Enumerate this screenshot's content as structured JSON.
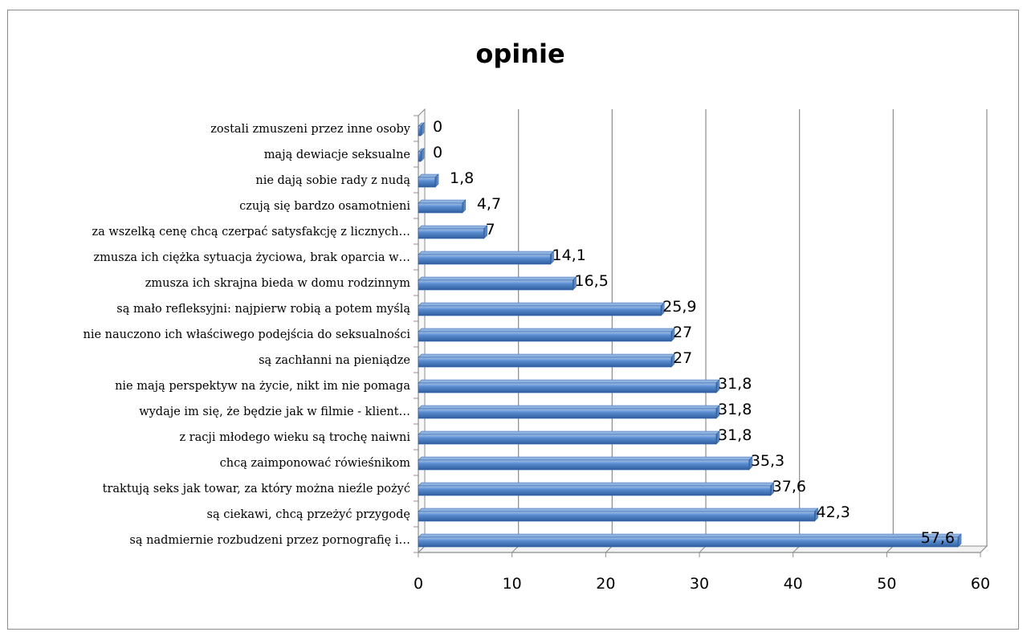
{
  "chart_data": {
    "type": "bar",
    "orientation": "horizontal",
    "title": "opinie",
    "xlabel": "",
    "ylabel": "",
    "xlim": [
      0,
      60
    ],
    "xticks": [
      0,
      10,
      20,
      30,
      40,
      50,
      60
    ],
    "grid": true,
    "legend": "none",
    "bar_color": "#4f81bd",
    "categories": [
      "zostali zmuszeni przez inne osoby",
      "mają dewiacje seksualne",
      "nie dają sobie rady z nudą",
      "czują się bardzo osamotnieni",
      "za wszelką cenę chcą czerpać satysfakcję z licznych…",
      "zmusza ich ciężka sytuacja życiowa, brak oparcia w…",
      "zmusza ich skrajna bieda w domu rodzinnym",
      "są mało refleksyjni: najpierw robią a potem myślą",
      "nie nauczono ich właściwego podejścia do seksualności",
      "są zachłanni na  pieniądze",
      "nie mają perspektyw na życie, nikt im nie pomaga",
      "wydaje im się, że będzie jak w filmie - klient…",
      "z racji młodego wieku są trochę naiwni",
      "chcą zaimponować rówieśnikom",
      "traktują seks jak towar, za który można nieźle pożyć",
      "są ciekawi, chcą przeżyć przygodę",
      "są nadmiernie rozbudzeni przez pornografię i…"
    ],
    "values": [
      0,
      0,
      1.8,
      4.7,
      7,
      14.1,
      16.5,
      25.9,
      27,
      27,
      31.8,
      31.8,
      31.8,
      35.3,
      37.6,
      42.3,
      57.6
    ],
    "data_labels": [
      "0",
      "0",
      "1,8",
      "4,7",
      "7",
      "14,1",
      "16,5",
      "25,9",
      "27",
      "27",
      "31,8",
      "31,8",
      "31,8",
      "35,3",
      "37,6",
      "42,3",
      "57,6"
    ]
  }
}
